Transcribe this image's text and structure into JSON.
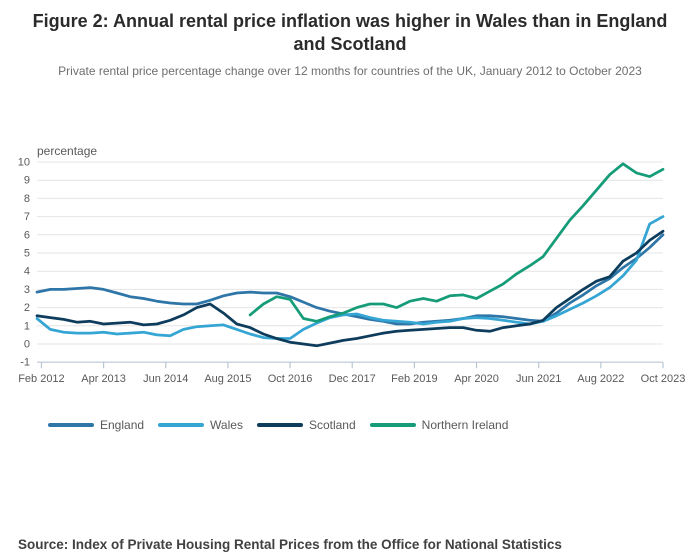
{
  "figure": {
    "title": "Figure 2: Annual rental price inflation was higher in Wales than in England and Scotland",
    "subtitle": "Private rental price percentage change over 12 months for countries of the UK, January 2012 to October 2023",
    "source": "Source: Index of Private Housing Rental Prices from the Office for National Statistics"
  },
  "chart_data": {
    "type": "line",
    "title": "Figure 2: Annual rental price inflation was higher in Wales than in England and Scotland",
    "ylabel": "percentage",
    "xlabel": "",
    "grid": true,
    "legend_position": "bottom",
    "ylim": [
      -1,
      10
    ],
    "y_ticks": [
      -1,
      0,
      1,
      2,
      3,
      4,
      5,
      6,
      7,
      8,
      9,
      10
    ],
    "x_unit": "months since Jan 2012",
    "x_range_months": [
      0,
      141
    ],
    "x_tick_months": [
      1,
      15,
      29,
      43,
      57,
      71,
      85,
      99,
      113,
      127,
      141
    ],
    "x_tick_labels": [
      "Feb 2012",
      "Apr 2013",
      "Jun 2014",
      "Aug 2015",
      "Oct 2016",
      "Dec 2017",
      "Feb 2019",
      "Apr 2020",
      "Jun 2021",
      "Aug 2022",
      "Oct 2023"
    ],
    "sampling_note": "values sampled quarterly (Jan, Apr, Jul, Oct) from Jan 2012 to Oct 2023",
    "layout": {
      "gridline_color": "#e4e4e4",
      "axis_color": "#b7c6d3",
      "tick_label_color": "#595959",
      "line_width": 2.75
    },
    "series": [
      {
        "name": "England",
        "color": "#2e75a8",
        "start_month": 0,
        "step_months": 3,
        "values": [
          2.85,
          3.0,
          3.0,
          3.05,
          3.1,
          3.0,
          2.8,
          2.6,
          2.5,
          2.35,
          2.25,
          2.2,
          2.2,
          2.4,
          2.65,
          2.8,
          2.85,
          2.8,
          2.8,
          2.6,
          2.3,
          2.0,
          1.8,
          1.65,
          1.5,
          1.35,
          1.25,
          1.1,
          1.1,
          1.2,
          1.25,
          1.3,
          1.4,
          1.55,
          1.55,
          1.5,
          1.4,
          1.3,
          1.25,
          1.7,
          2.25,
          2.7,
          3.2,
          3.6,
          4.2,
          4.7,
          5.3,
          6.0
        ]
      },
      {
        "name": "Wales",
        "color": "#35a5d3",
        "start_month": 0,
        "step_months": 3,
        "values": [
          1.4,
          0.8,
          0.65,
          0.6,
          0.6,
          0.65,
          0.55,
          0.6,
          0.65,
          0.5,
          0.45,
          0.8,
          0.95,
          1.0,
          1.05,
          0.8,
          0.55,
          0.35,
          0.3,
          0.3,
          0.8,
          1.15,
          1.45,
          1.6,
          1.65,
          1.45,
          1.3,
          1.25,
          1.2,
          1.1,
          1.2,
          1.25,
          1.4,
          1.45,
          1.4,
          1.3,
          1.2,
          1.1,
          1.25,
          1.55,
          1.9,
          2.25,
          2.65,
          3.1,
          3.75,
          4.6,
          6.6,
          7.0
        ]
      },
      {
        "name": "Scotland",
        "color": "#0d3c5c",
        "start_month": 0,
        "step_months": 3,
        "values": [
          1.55,
          1.45,
          1.35,
          1.2,
          1.25,
          1.1,
          1.15,
          1.2,
          1.05,
          1.1,
          1.3,
          1.6,
          2.0,
          2.2,
          1.7,
          1.1,
          0.9,
          0.55,
          0.3,
          0.1,
          0.0,
          -0.1,
          0.05,
          0.2,
          0.3,
          0.45,
          0.6,
          0.7,
          0.75,
          0.8,
          0.85,
          0.9,
          0.9,
          0.75,
          0.7,
          0.9,
          1.0,
          1.1,
          1.3,
          2.0,
          2.5,
          3.0,
          3.45,
          3.7,
          4.55,
          5.0,
          5.7,
          6.2
        ]
      },
      {
        "name": "Northern Ireland",
        "color": "#169c78",
        "start_month": 48,
        "step_months": 3,
        "values": [
          1.6,
          2.2,
          2.6,
          2.45,
          1.4,
          1.25,
          1.5,
          1.7,
          2.0,
          2.2,
          2.2,
          2.0,
          2.35,
          2.5,
          2.35,
          2.65,
          2.7,
          2.5,
          2.9,
          3.3,
          3.85,
          4.3,
          4.8,
          5.8,
          6.8,
          7.6,
          8.45,
          9.3,
          9.9,
          9.4,
          9.2,
          9.6
        ]
      }
    ]
  }
}
